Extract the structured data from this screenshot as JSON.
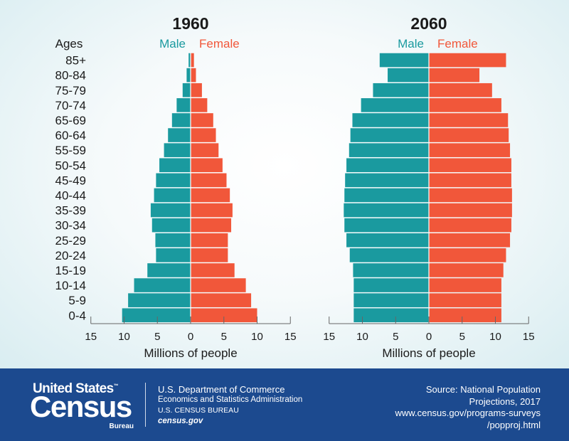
{
  "colors": {
    "male": "#1a9a9f",
    "female": "#f1573a",
    "axis": "#666666",
    "text": "#1a1a1a",
    "footer_bg": "#1c4a8f"
  },
  "ages_label": "Ages",
  "chart_data": [
    {
      "type": "bar",
      "orientation": "horizontal",
      "subtype": "population-pyramid",
      "title": "1960",
      "xlabel": "Millions of people",
      "xlim": [
        -15,
        15
      ],
      "xticks": [
        "15",
        "10",
        "5",
        "0",
        "5",
        "10",
        "15"
      ],
      "categories": [
        "85+",
        "80-84",
        "75-79",
        "70-74",
        "65-69",
        "60-64",
        "55-59",
        "50-54",
        "45-49",
        "40-44",
        "35-39",
        "30-34",
        "25-29",
        "20-24",
        "15-19",
        "10-14",
        "5-9",
        "0-4"
      ],
      "series": [
        {
          "name": "Male",
          "values": [
            0.3,
            0.6,
            1.2,
            2.1,
            2.8,
            3.4,
            4.0,
            4.7,
            5.2,
            5.5,
            6.0,
            5.8,
            5.3,
            5.2,
            6.5,
            8.5,
            9.4,
            10.3
          ]
        },
        {
          "name": "Female",
          "values": [
            0.5,
            0.8,
            1.7,
            2.5,
            3.4,
            3.8,
            4.2,
            4.8,
            5.4,
            5.9,
            6.3,
            6.1,
            5.6,
            5.6,
            6.6,
            8.3,
            9.1,
            10.0
          ]
        }
      ]
    },
    {
      "type": "bar",
      "orientation": "horizontal",
      "subtype": "population-pyramid",
      "title": "2060",
      "xlabel": "Millions of people",
      "xlim": [
        -15,
        15
      ],
      "xticks": [
        "15",
        "10",
        "5",
        "0",
        "5",
        "10",
        "15"
      ],
      "categories": [
        "85+",
        "80-84",
        "75-79",
        "70-74",
        "65-69",
        "60-64",
        "55-59",
        "50-54",
        "45-49",
        "40-44",
        "35-39",
        "30-34",
        "25-29",
        "20-24",
        "15-19",
        "10-14",
        "5-9",
        "0-4"
      ],
      "series": [
        {
          "name": "Male",
          "values": [
            7.4,
            6.2,
            8.4,
            10.2,
            11.5,
            11.8,
            12.0,
            12.4,
            12.6,
            12.7,
            12.8,
            12.7,
            12.4,
            11.9,
            11.4,
            11.3,
            11.3,
            11.3
          ]
        },
        {
          "name": "Female",
          "values": [
            11.6,
            7.6,
            9.5,
            10.9,
            11.9,
            12.0,
            12.2,
            12.4,
            12.4,
            12.5,
            12.5,
            12.4,
            12.2,
            11.6,
            11.2,
            10.9,
            10.9,
            10.9
          ]
        }
      ]
    }
  ],
  "footer": {
    "logo_top": "United States",
    "logo_tm": "™",
    "logo_main": "Census",
    "logo_bureau": "Bureau",
    "dept_line1": "U.S. Department of Commerce",
    "dept_line2": "Economics and Statistics Administration",
    "dept_line3": "U.S. CENSUS BUREAU",
    "dept_line4": "census.gov",
    "source_line1": "Source: National Population",
    "source_line2": "Projections, 2017",
    "source_line3": "www.census.gov/programs-surveys",
    "source_line4": "/popproj.html"
  }
}
